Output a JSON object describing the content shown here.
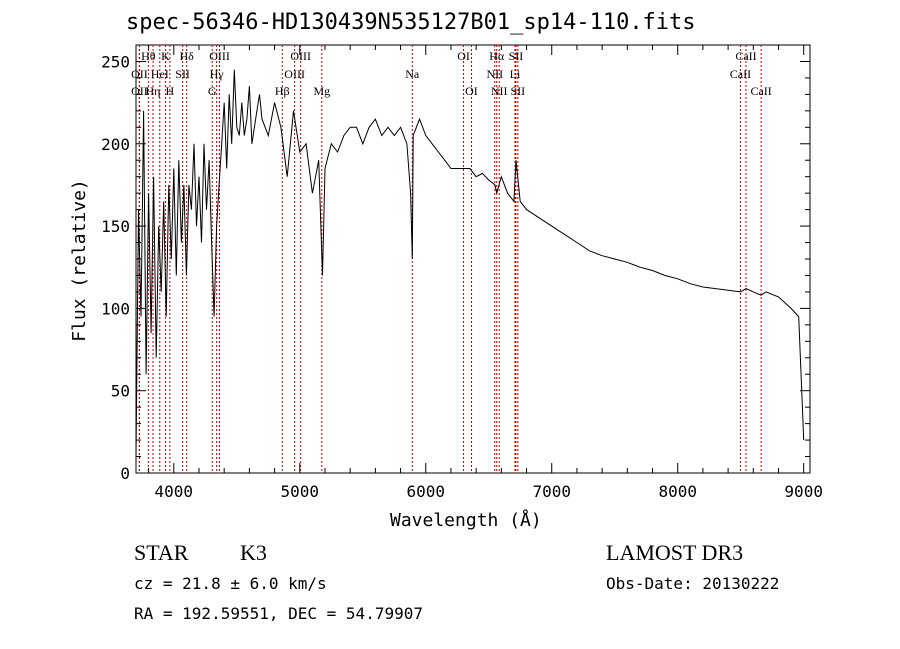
{
  "chart_data": {
    "type": "line",
    "title": "spec-56346-HD130439N535127B01_sp14-110.fits",
    "xlabel": "Wavelength (Å)",
    "ylabel": "Flux (relative)",
    "xlim": [
      3700,
      9050
    ],
    "ylim": [
      0,
      260
    ],
    "xticks": [
      4000,
      5000,
      6000,
      7000,
      8000,
      9000
    ],
    "yticks": [
      0,
      50,
      100,
      150,
      200,
      250
    ],
    "series": [
      {
        "name": "spectrum",
        "x": [
          3700,
          3720,
          3740,
          3760,
          3780,
          3800,
          3820,
          3840,
          3860,
          3880,
          3900,
          3920,
          3940,
          3960,
          3980,
          4000,
          4020,
          4040,
          4060,
          4080,
          4100,
          4120,
          4140,
          4160,
          4180,
          4200,
          4220,
          4240,
          4260,
          4280,
          4300,
          4320,
          4340,
          4360,
          4380,
          4400,
          4420,
          4440,
          4460,
          4480,
          4500,
          4520,
          4540,
          4560,
          4580,
          4600,
          4620,
          4640,
          4660,
          4680,
          4700,
          4750,
          4800,
          4850,
          4900,
          4950,
          5000,
          5050,
          5100,
          5150,
          5180,
          5200,
          5250,
          5300,
          5350,
          5400,
          5450,
          5500,
          5550,
          5600,
          5650,
          5700,
          5750,
          5800,
          5850,
          5880,
          5893,
          5900,
          5950,
          6000,
          6050,
          6100,
          6150,
          6200,
          6250,
          6300,
          6350,
          6400,
          6450,
          6500,
          6550,
          6563,
          6600,
          6650,
          6700,
          6716,
          6750,
          6800,
          6900,
          7000,
          7100,
          7200,
          7300,
          7400,
          7500,
          7600,
          7700,
          7800,
          7900,
          8000,
          8100,
          8200,
          8300,
          8400,
          8500,
          8542,
          8600,
          8662,
          8700,
          8800,
          8900,
          8960,
          8990,
          9000
        ],
        "values": [
          10,
          160,
          95,
          220,
          60,
          170,
          85,
          180,
          70,
          150,
          110,
          165,
          95,
          175,
          130,
          185,
          120,
          190,
          140,
          175,
          120,
          175,
          160,
          200,
          150,
          180,
          140,
          200,
          160,
          190,
          140,
          95,
          150,
          175,
          200,
          225,
          185,
          230,
          200,
          245,
          210,
          205,
          225,
          205,
          215,
          235,
          200,
          210,
          220,
          230,
          215,
          205,
          225,
          210,
          180,
          220,
          195,
          200,
          170,
          190,
          120,
          185,
          200,
          195,
          205,
          210,
          210,
          200,
          210,
          215,
          205,
          210,
          205,
          210,
          200,
          170,
          130,
          205,
          215,
          205,
          200,
          195,
          190,
          185,
          185,
          185,
          185,
          180,
          182,
          178,
          175,
          170,
          180,
          170,
          165,
          190,
          165,
          160,
          155,
          150,
          145,
          140,
          135,
          132,
          130,
          128,
          125,
          123,
          120,
          118,
          115,
          113,
          112,
          111,
          110,
          112,
          110,
          108,
          110,
          107,
          100,
          95,
          40,
          20
        ]
      }
    ],
    "line_markers": [
      {
        "label": "Hθ",
        "x": 3798,
        "row": 0
      },
      {
        "label": "OII",
        "x": 3727,
        "row": 1
      },
      {
        "label": "OII",
        "x": 3727,
        "row": 2
      },
      {
        "label": "Hη",
        "x": 3835,
        "row": 2
      },
      {
        "label": "HeI",
        "x": 3889,
        "row": 1
      },
      {
        "label": "K",
        "x": 3934,
        "row": 0
      },
      {
        "label": "H",
        "x": 3969,
        "row": 2
      },
      {
        "label": "SII",
        "x": 4070,
        "row": 1
      },
      {
        "label": "Hδ",
        "x": 4102,
        "row": 0
      },
      {
        "label": "OIII",
        "x": 4363,
        "row": 0
      },
      {
        "label": "Hγ",
        "x": 4340,
        "row": 1
      },
      {
        "label": "G",
        "x": 4305,
        "row": 2
      },
      {
        "label": "Hβ",
        "x": 4861,
        "row": 2
      },
      {
        "label": "OIII",
        "x": 5007,
        "row": 0
      },
      {
        "label": "OIII",
        "x": 4959,
        "row": 1
      },
      {
        "label": "Mg",
        "x": 5175,
        "row": 2
      },
      {
        "label": "Na",
        "x": 5893,
        "row": 1
      },
      {
        "label": "OI",
        "x": 6300,
        "row": 0
      },
      {
        "label": "OI",
        "x": 6363,
        "row": 2
      },
      {
        "label": "Hα",
        "x": 6563,
        "row": 0
      },
      {
        "label": "NII",
        "x": 6548,
        "row": 1
      },
      {
        "label": "NII",
        "x": 6583,
        "row": 2
      },
      {
        "label": "SII",
        "x": 6716,
        "row": 0
      },
      {
        "label": "Li",
        "x": 6708,
        "row": 1
      },
      {
        "label": "SII",
        "x": 6731,
        "row": 2
      },
      {
        "label": "CaII",
        "x": 8542,
        "row": 0
      },
      {
        "label": "CaII",
        "x": 8498,
        "row": 1
      },
      {
        "label": "CaII",
        "x": 8662,
        "row": 2
      }
    ],
    "grid": false
  },
  "footer": {
    "class_label": "STAR",
    "subclass": "K3",
    "cz": "cz = 21.8 ± 6.0 km/s",
    "coords": "RA = 192.59551, DEC =  54.79907",
    "survey": "LAMOST DR3",
    "obs_date": "Obs-Date: 20130222"
  },
  "colors": {
    "line": "#000000",
    "marker": "#c00000"
  }
}
